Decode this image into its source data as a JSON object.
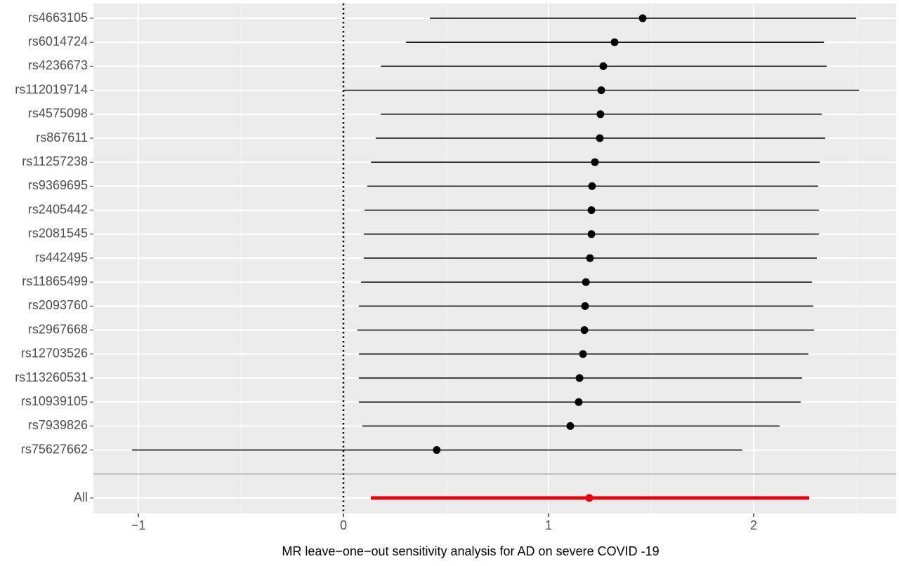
{
  "chart_data": {
    "type": "forest",
    "x_label": "MR leave−one−out sensitivity analysis for AD on severe COVID -19",
    "categories": [
      "rs4663105",
      "rs6014724",
      "rs4236673",
      "rs112019714",
      "rs4575098",
      "rs867611",
      "rs11257238",
      "rs9369695",
      "rs2405442",
      "rs2081545",
      "rs442495",
      "rs11865499",
      "rs2093760",
      "rs2967668",
      "rs12703526",
      "rs113260531",
      "rs10939105",
      "rs7939826",
      "rs75627662"
    ],
    "values": [
      1.459,
      1.322,
      1.267,
      1.257,
      1.253,
      1.25,
      1.226,
      1.212,
      1.209,
      1.209,
      1.202,
      1.182,
      1.178,
      1.175,
      1.168,
      1.151,
      1.147,
      1.106,
      0.455
    ],
    "lower": [
      0.421,
      0.305,
      0.182,
      0.003,
      0.182,
      0.158,
      0.134,
      0.116,
      0.103,
      0.099,
      0.099,
      0.086,
      0.075,
      0.068,
      0.075,
      0.075,
      0.075,
      0.092,
      -1.031
    ],
    "upper": [
      2.5,
      2.342,
      2.356,
      2.514,
      2.332,
      2.349,
      2.322,
      2.315,
      2.318,
      2.318,
      2.308,
      2.284,
      2.291,
      2.295,
      2.267,
      2.236,
      2.229,
      2.127,
      1.945
    ],
    "color": "#000000",
    "summary": {
      "name": "All",
      "value": 1.199,
      "lower": 0.134,
      "upper": 2.271,
      "color": "#e8000b"
    },
    "reference_line": 0,
    "xlim": [
      -1.219,
      2.695
    ],
    "xticks": [
      {
        "value": -1,
        "label": "−1"
      },
      0,
      1,
      2
    ],
    "grid": true
  }
}
